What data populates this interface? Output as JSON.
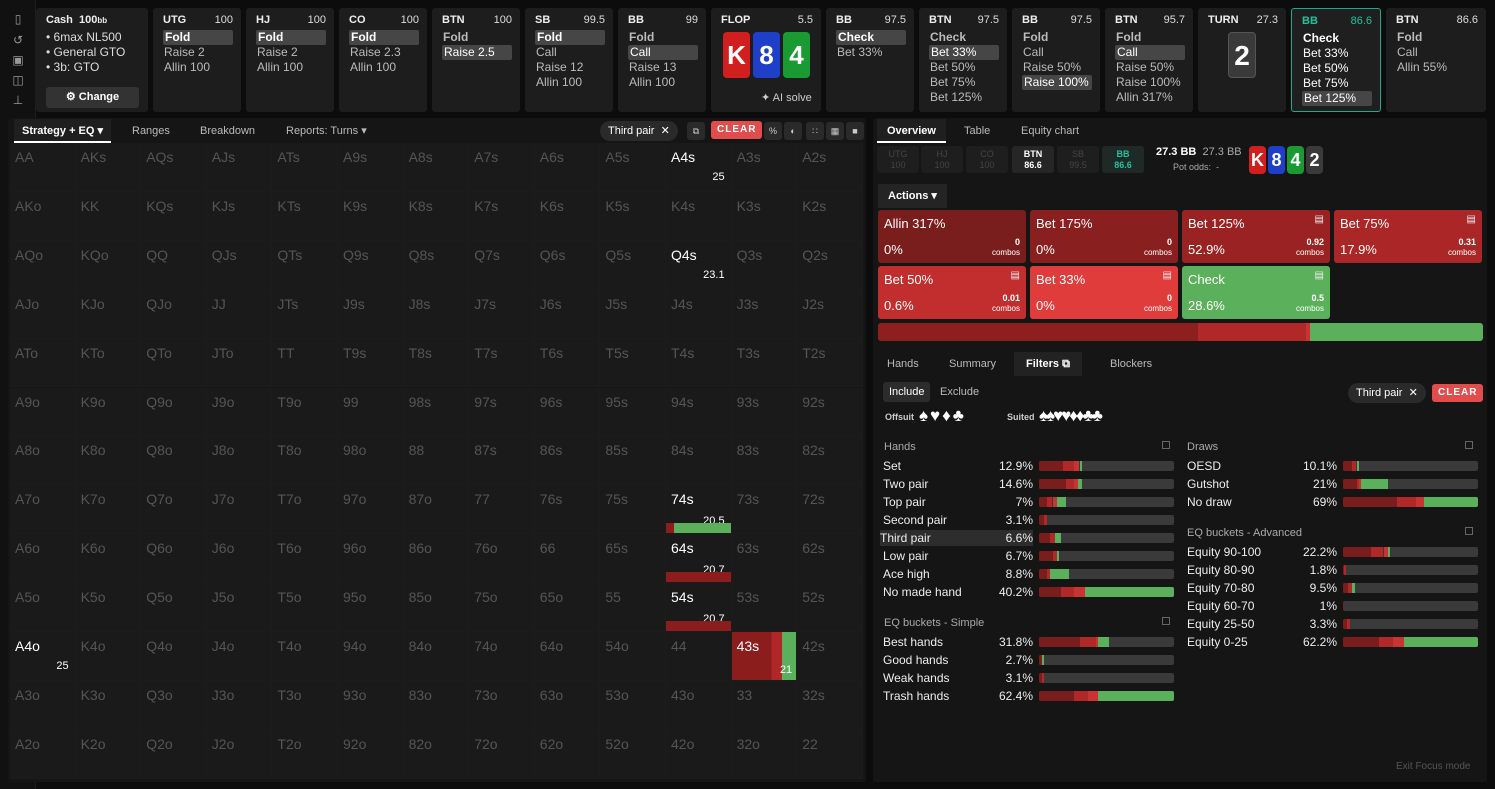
{
  "sidebar_icons": [
    "bookmark-icon",
    "history-icon",
    "save-icon",
    "gamepad-icon",
    "split-icon"
  ],
  "setup": {
    "title": "Cash",
    "stack": "100",
    "stack_unit": "bb",
    "items": [
      "6max NL500",
      "General GTO",
      "3b: GTO"
    ],
    "change_label": "Change"
  },
  "history": [
    {
      "pos": "UTG",
      "stack": "100",
      "actions": [
        "Fold",
        "Raise 2",
        "Allin 100"
      ],
      "sel": 0
    },
    {
      "pos": "HJ",
      "stack": "100",
      "actions": [
        "Fold",
        "Raise 2",
        "Allin 100"
      ],
      "sel": 0
    },
    {
      "pos": "CO",
      "stack": "100",
      "actions": [
        "Fold",
        "Raise 2.3",
        "Allin 100"
      ],
      "sel": 0
    },
    {
      "pos": "BTN",
      "stack": "100",
      "actions": [
        "Fold",
        "Raise 2.5"
      ],
      "sel": 1
    },
    {
      "pos": "SB",
      "stack": "99.5",
      "actions": [
        "Fold",
        "Call",
        "Raise 12",
        "Allin 100"
      ],
      "sel": 0
    },
    {
      "pos": "BB",
      "stack": "99",
      "actions": [
        "Fold",
        "Call",
        "Raise 13",
        "Allin 100"
      ],
      "sel": 1
    },
    {
      "pos": "FLOP",
      "stack": "5.5",
      "board": true
    },
    {
      "pos": "BB",
      "stack": "97.5",
      "actions": [
        "Check",
        "Bet 33%"
      ],
      "sel": 0
    },
    {
      "pos": "BTN",
      "stack": "97.5",
      "actions": [
        "Check",
        "Bet 33%",
        "Bet 50%",
        "Bet 75%",
        "Bet 125%"
      ],
      "sel": 1
    },
    {
      "pos": "BB",
      "stack": "97.5",
      "actions": [
        "Fold",
        "Call",
        "Raise 50%",
        "Raise 100%"
      ],
      "sel": 3
    },
    {
      "pos": "BTN",
      "stack": "95.7",
      "actions": [
        "Fold",
        "Call",
        "Raise 50%",
        "Raise 100%",
        "Allin 317%"
      ],
      "sel": 1
    },
    {
      "pos": "TURN",
      "stack": "27.3",
      "turn": true
    },
    {
      "pos": "BB",
      "stack": "86.6",
      "actions": [
        "Check",
        "Bet 33%",
        "Bet 50%",
        "Bet 75%",
        "Bet 125%"
      ],
      "sel": 4,
      "active": true
    },
    {
      "pos": "BTN",
      "stack": "86.6",
      "actions": [
        "Fold",
        "Call",
        "Allin 55%"
      ],
      "sel": -1
    }
  ],
  "flop_cards": [
    {
      "rank": "K",
      "color": "#d11f1f"
    },
    {
      "rank": "8",
      "color": "#1f3fc9"
    },
    {
      "rank": "4",
      "color": "#1a9a33"
    }
  ],
  "ai_solve": "AI solve",
  "turn_card": "2",
  "left_tabs": [
    "Strategy + EQ",
    "Ranges",
    "Breakdown",
    "Reports: Turns"
  ],
  "filter_pill": "Third pair",
  "clear_label": "CLEAR",
  "grid": [
    [
      "AA",
      "AKs",
      "AQs",
      "AJs",
      "ATs",
      "A9s",
      "A8s",
      "A7s",
      "A6s",
      "A5s",
      "A4s",
      "A3s",
      "A2s"
    ],
    [
      "AKo",
      "KK",
      "KQs",
      "KJs",
      "KTs",
      "K9s",
      "K8s",
      "K7s",
      "K6s",
      "K5s",
      "K4s",
      "K3s",
      "K2s"
    ],
    [
      "AQo",
      "KQo",
      "QQ",
      "QJs",
      "QTs",
      "Q9s",
      "Q8s",
      "Q7s",
      "Q6s",
      "Q5s",
      "Q4s",
      "Q3s",
      "Q2s"
    ],
    [
      "AJo",
      "KJo",
      "QJo",
      "JJ",
      "JTs",
      "J9s",
      "J8s",
      "J7s",
      "J6s",
      "J5s",
      "J4s",
      "J3s",
      "J2s"
    ],
    [
      "ATo",
      "KTo",
      "QTo",
      "JTo",
      "TT",
      "T9s",
      "T8s",
      "T7s",
      "T6s",
      "T5s",
      "T4s",
      "T3s",
      "T2s"
    ],
    [
      "A9o",
      "K9o",
      "Q9o",
      "J9o",
      "T9o",
      "99",
      "98s",
      "97s",
      "96s",
      "95s",
      "94s",
      "93s",
      "92s"
    ],
    [
      "A8o",
      "K8o",
      "Q8o",
      "J8o",
      "T8o",
      "98o",
      "88",
      "87s",
      "86s",
      "85s",
      "84s",
      "83s",
      "82s"
    ],
    [
      "A7o",
      "K7o",
      "Q7o",
      "J7o",
      "T7o",
      "97o",
      "87o",
      "77",
      "76s",
      "75s",
      "74s",
      "73s",
      "72s"
    ],
    [
      "A6o",
      "K6o",
      "Q6o",
      "J6o",
      "T6o",
      "96o",
      "86o",
      "76o",
      "66",
      "65s",
      "64s",
      "63s",
      "62s"
    ],
    [
      "A5o",
      "K5o",
      "Q5o",
      "J5o",
      "T5o",
      "95o",
      "85o",
      "75o",
      "65o",
      "55",
      "54s",
      "53s",
      "52s"
    ],
    [
      "A4o",
      "K4o",
      "Q4o",
      "J4o",
      "T4o",
      "94o",
      "84o",
      "74o",
      "64o",
      "54o",
      "44",
      "43s",
      "42s"
    ],
    [
      "A3o",
      "K3o",
      "Q3o",
      "J3o",
      "T3o",
      "93o",
      "83o",
      "73o",
      "63o",
      "53o",
      "43o",
      "33",
      "32s"
    ],
    [
      "A2o",
      "K2o",
      "Q2o",
      "J2o",
      "T2o",
      "92o",
      "82o",
      "72o",
      "62o",
      "52o",
      "42o",
      "32o",
      "22"
    ]
  ],
  "highlighted_cells": [
    {
      "r": 0,
      "c": 10,
      "eq": "25"
    },
    {
      "r": 2,
      "c": 10,
      "eq": "23.1"
    },
    {
      "r": 7,
      "c": 10,
      "eq": "20.5"
    },
    {
      "r": 8,
      "c": 10,
      "eq": "20.7"
    },
    {
      "r": 9,
      "c": 10,
      "eq": "20.7"
    },
    {
      "r": 10,
      "c": 0,
      "eq": "25"
    },
    {
      "r": 10,
      "c": 11,
      "eq": "21"
    }
  ],
  "right_tabs": [
    "Overview",
    "Table",
    "Equity chart"
  ],
  "players": [
    {
      "pos": "UTG",
      "stack": "100"
    },
    {
      "pos": "HJ",
      "stack": "100"
    },
    {
      "pos": "CO",
      "stack": "100"
    },
    {
      "pos": "BTN",
      "stack": "86.6"
    },
    {
      "pos": "SB",
      "stack": "99.5"
    },
    {
      "pos": "BB",
      "stack": "86.6"
    }
  ],
  "pot": {
    "bb": "27.3 BB",
    "bb2": "27.3 BB",
    "odds_label": "Pot odds:",
    "odds_value": "-"
  },
  "board_cards": [
    {
      "rank": "K",
      "color": "#d11f1f"
    },
    {
      "rank": "8",
      "color": "#1f3fc9"
    },
    {
      "rank": "4",
      "color": "#1a9a33"
    },
    {
      "rank": "2",
      "color": "#3a3a3a"
    }
  ],
  "actions_label": "Actions",
  "actions": [
    {
      "name": "Allin 317%",
      "pct": "0%",
      "combos": "0",
      "color": "#7a1d1d"
    },
    {
      "name": "Bet 175%",
      "pct": "0%",
      "combos": "0",
      "color": "#8a1f1f"
    },
    {
      "name": "Bet 125%",
      "pct": "52.9%",
      "combos": "0.92",
      "color": "#9a2222"
    },
    {
      "name": "Bet 75%",
      "pct": "17.9%",
      "combos": "0.31",
      "color": "#ab2727"
    },
    {
      "name": "Bet 50%",
      "pct": "0.6%",
      "combos": "0.01",
      "color": "#c22e2e"
    },
    {
      "name": "Bet 33%",
      "pct": "0%",
      "combos": "0",
      "color": "#e03c3c"
    },
    {
      "name": "Check",
      "pct": "28.6%",
      "combos": "0.5",
      "color": "#5bb05b"
    }
  ],
  "combos_label": "combos",
  "strategy_bar": [
    {
      "value": 52.9,
      "color": "#8e1f1f"
    },
    {
      "value": 17.9,
      "color": "#b02828"
    },
    {
      "value": 0.6,
      "color": "#c93333"
    },
    {
      "value": 28.6,
      "color": "#5bb05b"
    }
  ],
  "sub_tabs": [
    "Hands",
    "Summary",
    "Filters",
    "Blockers"
  ],
  "include_label": "Include",
  "exclude_label": "Exclude",
  "offsuit_label": "Offsuit",
  "suited_label": "Suited",
  "hands_title": "Hands",
  "hands": [
    {
      "label": "Set",
      "value": "12.9%",
      "bar": [
        18,
        8,
        4,
        2
      ]
    },
    {
      "label": "Two pair",
      "value": "14.6%",
      "bar": [
        20,
        6,
        3,
        3
      ]
    },
    {
      "label": "Top pair",
      "value": "7%",
      "bar": [
        6,
        4,
        3,
        7
      ]
    },
    {
      "label": "Second pair",
      "value": "3.1%",
      "bar": [
        4,
        2,
        0,
        0
      ]
    },
    {
      "label": "Third pair",
      "value": "6.6%",
      "bar": [
        8,
        4,
        0,
        4
      ]
    },
    {
      "label": "Low pair",
      "value": "6.7%",
      "bar": [
        10,
        3,
        0,
        2
      ]
    },
    {
      "label": "Ace high",
      "value": "8.8%",
      "bar": [
        6,
        2,
        0,
        14
      ]
    },
    {
      "label": "No made hand",
      "value": "40.2%",
      "bar": [
        16,
        10,
        8,
        66
      ]
    }
  ],
  "eq_simple_title": "EQ buckets - Simple",
  "eq_simple": [
    {
      "label": "Best hands",
      "value": "31.8%",
      "bar": [
        30,
        12,
        2,
        8
      ]
    },
    {
      "label": "Good hands",
      "value": "2.7%",
      "bar": [
        2,
        0,
        0,
        2
      ]
    },
    {
      "label": "Weak hands",
      "value": "3.1%",
      "bar": [
        2,
        2,
        0,
        0
      ]
    },
    {
      "label": "Trash hands",
      "value": "62.4%",
      "bar": [
        26,
        10,
        8,
        56
      ]
    }
  ],
  "draws_title": "Draws",
  "draws": [
    {
      "label": "OESD",
      "value": "10.1%",
      "bar": [
        7,
        3,
        0,
        2
      ]
    },
    {
      "label": "Gutshot",
      "value": "21%",
      "bar": [
        10,
        2,
        1,
        20
      ]
    },
    {
      "label": "No draw",
      "value": "69%",
      "bar": [
        40,
        14,
        6,
        40
      ]
    }
  ],
  "eq_adv_title": "EQ buckets - Advanced",
  "eq_adv": [
    {
      "label": "Equity 90-100",
      "value": "22.2%",
      "bar": [
        21,
        9,
        3,
        2
      ]
    },
    {
      "label": "Equity 80-90",
      "value": "1.8%",
      "bar": [
        1,
        1,
        0,
        0
      ]
    },
    {
      "label": "Equity 70-80",
      "value": "9.5%",
      "bar": [
        4,
        3,
        0,
        2
      ]
    },
    {
      "label": "Equity 60-70",
      "value": "1%",
      "bar": [
        1,
        0,
        0,
        0
      ]
    },
    {
      "label": "Equity 25-50",
      "value": "3.3%",
      "bar": [
        3,
        2,
        0,
        0
      ]
    },
    {
      "label": "Equity 0-25",
      "value": "62.2%",
      "bar": [
        27,
        10,
        8,
        56
      ]
    }
  ],
  "exit_focus": "Exit Focus mode"
}
